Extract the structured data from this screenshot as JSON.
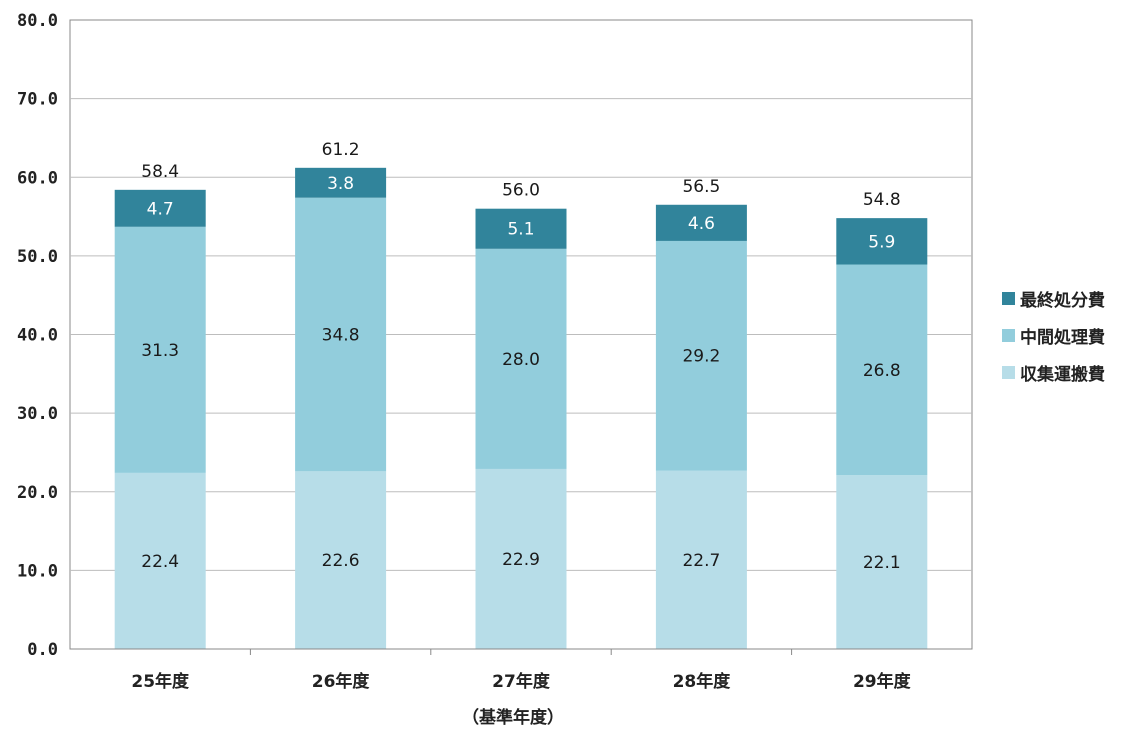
{
  "chart_data": {
    "type": "bar",
    "stacked": true,
    "categories": [
      "25年度",
      "26年度",
      "27年度",
      "28年度",
      "29年度"
    ],
    "series": [
      {
        "name": "収集運搬費",
        "values": [
          22.4,
          22.6,
          22.9,
          22.7,
          22.1
        ],
        "color": "#b7dde8"
      },
      {
        "name": "中間処理費",
        "values": [
          31.3,
          34.8,
          28.0,
          29.2,
          26.8
        ],
        "color": "#92cddc"
      },
      {
        "name": "最終処分費",
        "values": [
          4.7,
          3.8,
          5.1,
          4.6,
          5.9
        ],
        "color": "#31849b"
      }
    ],
    "totals": [
      58.4,
      61.2,
      56.0,
      56.5,
      54.8
    ],
    "y_ticks": [
      "0.0",
      "10.0",
      "20.0",
      "30.0",
      "40.0",
      "50.0",
      "60.0",
      "70.0",
      "80.0"
    ],
    "ylim": [
      0,
      80
    ],
    "xlabel": "（基準年度）",
    "grid": true,
    "legend_position": "right"
  }
}
